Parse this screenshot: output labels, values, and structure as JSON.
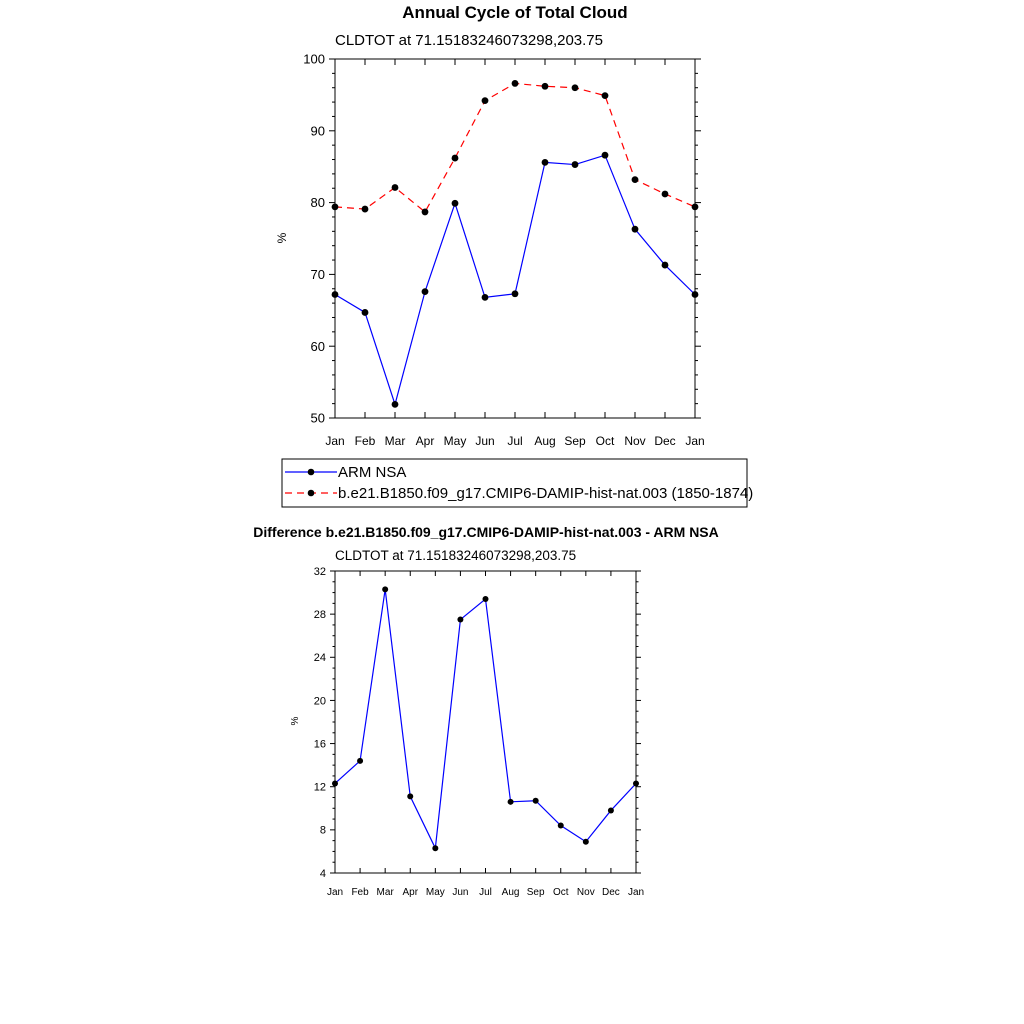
{
  "chart_data": [
    {
      "type": "line",
      "title": "Annual Cycle of Total Cloud",
      "subtitle": "CLDTOT at 71.15183246073298,203.75",
      "ylabel": "%",
      "xlabel": "",
      "categories": [
        "Jan",
        "Feb",
        "Mar",
        "Apr",
        "May",
        "Jun",
        "Jul",
        "Aug",
        "Sep",
        "Oct",
        "Nov",
        "Dec",
        "Jan"
      ],
      "ylim": [
        50,
        100
      ],
      "yticks": [
        50,
        60,
        70,
        80,
        90,
        100
      ],
      "grid": false,
      "legend_placement": "below",
      "series": [
        {
          "name": "ARM NSA",
          "color": "#0000ff",
          "dash": "solid",
          "values": [
            67.2,
            64.7,
            51.9,
            67.6,
            79.9,
            66.8,
            67.3,
            85.6,
            85.3,
            86.6,
            76.3,
            71.3,
            67.2
          ]
        },
        {
          "name": "b.e21.B1850.f09_g17.CMIP6-DAMIP-hist-nat.003 (1850-1874)",
          "color": "#ff0000",
          "dash": "dashed",
          "values": [
            79.4,
            79.1,
            82.1,
            78.7,
            86.2,
            94.2,
            96.6,
            96.2,
            96.0,
            94.9,
            83.2,
            81.2,
            79.4
          ]
        }
      ]
    },
    {
      "type": "line",
      "title": "Difference b.e21.B1850.f09_g17.CMIP6-DAMIP-hist-nat.003 - ARM NSA",
      "subtitle": "CLDTOT at 71.15183246073298,203.75",
      "ylabel": "%",
      "xlabel": "",
      "categories": [
        "Jan",
        "Feb",
        "Mar",
        "Apr",
        "May",
        "Jun",
        "Jul",
        "Aug",
        "Sep",
        "Oct",
        "Nov",
        "Dec",
        "Jan"
      ],
      "ylim": [
        4,
        32
      ],
      "yticks": [
        4,
        8,
        12,
        16,
        20,
        24,
        28,
        32
      ],
      "grid": false,
      "series": [
        {
          "color": "#0000ff",
          "dash": "solid",
          "values": [
            12.3,
            14.4,
            30.3,
            11.1,
            6.3,
            27.5,
            29.4,
            10.6,
            10.7,
            8.4,
            6.9,
            9.8,
            12.3
          ]
        }
      ]
    }
  ]
}
